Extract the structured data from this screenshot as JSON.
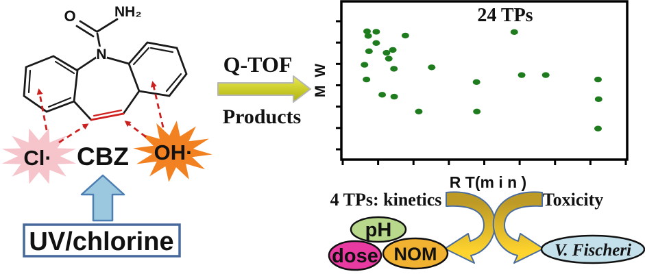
{
  "left": {
    "atom_labels": {
      "oxygen": "O",
      "amide": "NH₂",
      "nitrogen": "N"
    },
    "cl_radical": "Cl·",
    "oh_radical": "OH·",
    "compound_label": "CBZ",
    "treatment_label": "UV/chlorine",
    "colors": {
      "cl_burst_fill": "#f6c5cb",
      "oh_burst_fill": "#f28122",
      "radical_arrow": "#cc2020",
      "alkene_bond": "#d01f1f",
      "bond": "#1a1a1a",
      "up_arrow_fill": "#9bc8df",
      "up_arrow_stroke": "#4d7eb3",
      "box_border": "#46689b"
    }
  },
  "middle": {
    "instrument_label": "Q-TOF",
    "products_label": "Products",
    "arrow_top_color": "#e9e94f",
    "arrow_bottom_color": "#aeb20c"
  },
  "chart": {
    "title": "24 TPs",
    "ylabel": "M W",
    "xlabel": "R T(m i n )",
    "dot_color": "#1e7b1e",
    "frame_color": "#000000"
  },
  "bottom": {
    "kinetics_label": "4 TPs: kinetics",
    "toxicity_label": "Toxicity",
    "curved_arrow_colors": {
      "top": "#bd9a26",
      "bottom": "#ffd42e",
      "outline": "#4a6d9e"
    },
    "ellipses": [
      {
        "label": "pH",
        "fill": "#b8d98c",
        "text": "#111111"
      },
      {
        "label": "dose",
        "fill": "#e83aa0",
        "text": "#111111"
      },
      {
        "label": "NOM",
        "fill": "#f2b231",
        "text": "#111111"
      },
      {
        "label": "V. Fischeri",
        "fill": "#c3e0eb",
        "text": "#111111"
      }
    ]
  },
  "chart_data": {
    "type": "scatter",
    "title": "24 TPs",
    "xlabel": "RT (min)",
    "ylabel": "MW",
    "legend": null,
    "grid": false,
    "axis_values_labeled": false,
    "x_tick_count": 9,
    "y_tick_count": 7,
    "point_count": 24,
    "points_fraction_note": "x: 0=left edge to 1=right edge of plot; y: 0=top edge to 1=bottom edge",
    "points": [
      {
        "x": 0.09,
        "y": 0.189
      },
      {
        "x": 0.094,
        "y": 0.218
      },
      {
        "x": 0.122,
        "y": 0.192
      },
      {
        "x": 0.224,
        "y": 0.216
      },
      {
        "x": 0.122,
        "y": 0.263
      },
      {
        "x": 0.097,
        "y": 0.315
      },
      {
        "x": 0.158,
        "y": 0.325
      },
      {
        "x": 0.18,
        "y": 0.307
      },
      {
        "x": 0.166,
        "y": 0.362
      },
      {
        "x": 0.081,
        "y": 0.401
      },
      {
        "x": 0.184,
        "y": 0.426
      },
      {
        "x": 0.316,
        "y": 0.417
      },
      {
        "x": 0.088,
        "y": 0.494
      },
      {
        "x": 0.605,
        "y": 0.194
      },
      {
        "x": 0.631,
        "y": 0.466
      },
      {
        "x": 0.715,
        "y": 0.466
      },
      {
        "x": 0.143,
        "y": 0.59
      },
      {
        "x": 0.185,
        "y": 0.602
      },
      {
        "x": 0.473,
        "y": 0.51
      },
      {
        "x": 0.898,
        "y": 0.494
      },
      {
        "x": 0.9,
        "y": 0.618
      },
      {
        "x": 0.271,
        "y": 0.696
      },
      {
        "x": 0.474,
        "y": 0.696
      },
      {
        "x": 0.898,
        "y": 0.804
      }
    ]
  }
}
